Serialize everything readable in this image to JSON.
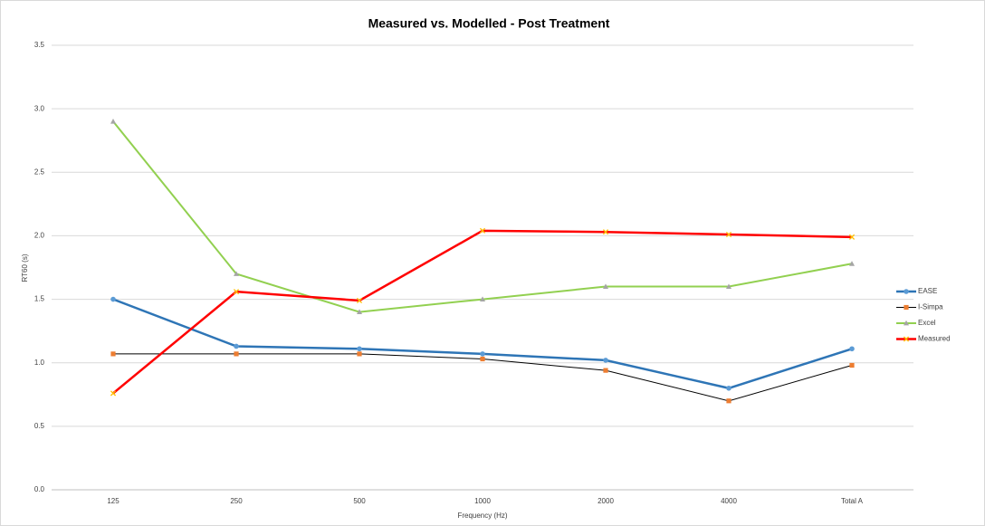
{
  "chart_data": {
    "type": "line",
    "title": "Measured vs. Modelled - Post Treatment",
    "x_label": "Frequency (Hz)",
    "y_label": "RT60 (s)",
    "categories": [
      "125",
      "250",
      "500",
      "1000",
      "2000",
      "4000",
      "Total A"
    ],
    "series": [
      {
        "name": "EASE",
        "color": "#2e75b6",
        "marker": "circle",
        "marker_color": "#5b9bd5",
        "values": [
          1.5,
          1.13,
          1.11,
          1.07,
          1.02,
          0.8,
          1.11
        ]
      },
      {
        "name": "I-Simpa",
        "color": "#000000",
        "marker": "square",
        "marker_color": "#ed7d31",
        "values": [
          1.07,
          1.07,
          1.07,
          1.03,
          0.94,
          0.7,
          0.98
        ]
      },
      {
        "name": "Excel",
        "color": "#92d050",
        "marker": "triangle",
        "marker_color": "#a5a5a5",
        "values": [
          2.9,
          1.7,
          1.4,
          1.5,
          1.6,
          1.6,
          1.78
        ]
      },
      {
        "name": "Measured",
        "color": "#ff0000",
        "marker": "x",
        "marker_color": "#ffc000",
        "values": [
          0.76,
          1.56,
          1.49,
          2.04,
          2.03,
          2.01,
          1.99
        ]
      }
    ],
    "ylim": [
      0,
      3.5
    ],
    "yticks": [
      {
        "value": 0,
        "label": "0.0"
      },
      0.5,
      {
        "value": 1,
        "label": "1.0"
      },
      1.5,
      {
        "value": 2,
        "label": "2.0"
      },
      2.5,
      {
        "value": 3,
        "label": "3.0"
      },
      3.5
    ],
    "grid": true,
    "legend": "right"
  }
}
